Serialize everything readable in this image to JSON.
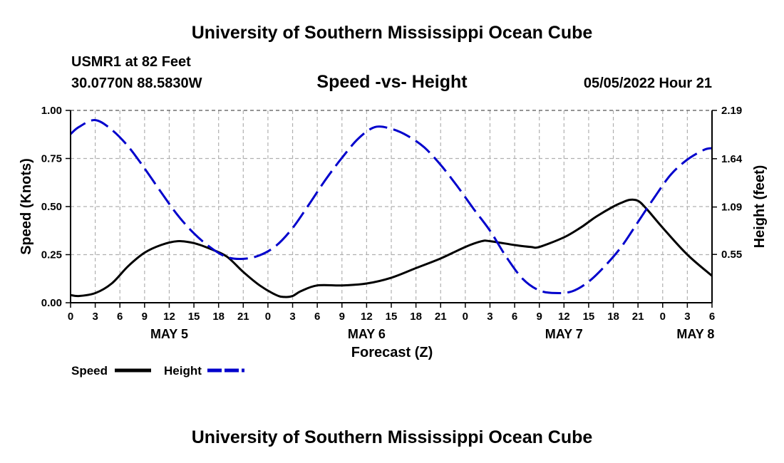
{
  "header": {
    "title_top": "University of Southern Mississippi Ocean Cube",
    "title_bottom": "University of Southern Mississippi Ocean Cube",
    "station": "USMR1 at 82 Feet",
    "coords": "30.0770N  88.5830W",
    "subtitle": "Speed -vs- Height",
    "timestamp": "05/05/2022 Hour 21"
  },
  "chart_data": {
    "type": "line",
    "title": "Speed -vs- Height",
    "xlabel": "Forecast (Z)",
    "ylabel": "Speed (Knots)",
    "y2label": "Height (feet)",
    "xlim": [
      0,
      78
    ],
    "ylim": [
      0,
      1
    ],
    "y2lim": [
      0,
      2.19
    ],
    "x_tick_values": [
      0,
      3,
      6,
      9,
      12,
      15,
      18,
      21,
      24,
      27,
      30,
      33,
      36,
      39,
      42,
      45,
      48,
      51,
      54,
      57,
      60,
      63,
      66,
      69,
      72,
      75,
      78
    ],
    "x_tick_labels": [
      "0",
      "3",
      "6",
      "9",
      "12",
      "15",
      "18",
      "21",
      "0",
      "3",
      "6",
      "9",
      "12",
      "15",
      "18",
      "21",
      "0",
      "3",
      "6",
      "9",
      "12",
      "15",
      "18",
      "21",
      "0",
      "3",
      "6"
    ],
    "y_ticks": [
      0,
      0.25,
      0.5,
      0.75,
      1.0
    ],
    "y_tick_labels": [
      "0.00",
      "0.25",
      "0.50",
      "0.75",
      "1.00"
    ],
    "y2_ticks": [
      0.55,
      1.09,
      1.64,
      2.19
    ],
    "y2_tick_labels": [
      "0.55",
      "1.09",
      "1.64",
      "2.19"
    ],
    "day_labels": [
      {
        "x": 12,
        "label": "MAY 5"
      },
      {
        "x": 36,
        "label": "MAY 6"
      },
      {
        "x": 60,
        "label": "MAY 7"
      },
      {
        "x": 76,
        "label": "MAY 8"
      }
    ],
    "grid": true,
    "series": [
      {
        "name": "Speed",
        "axis": "left",
        "color": "#000000",
        "style": "solid",
        "x": [
          0,
          1,
          3,
          5,
          7,
          9,
          11,
          13,
          15,
          17,
          19,
          21,
          23,
          25,
          26,
          27,
          28,
          30,
          33,
          36,
          39,
          42,
          45,
          48,
          50,
          51,
          54,
          56,
          57,
          60,
          62,
          63,
          64,
          66,
          67,
          68,
          69,
          70,
          72,
          75,
          78
        ],
        "y": [
          0.04,
          0.035,
          0.05,
          0.1,
          0.19,
          0.26,
          0.3,
          0.32,
          0.31,
          0.28,
          0.24,
          0.16,
          0.09,
          0.04,
          0.03,
          0.035,
          0.06,
          0.09,
          0.09,
          0.1,
          0.13,
          0.18,
          0.23,
          0.29,
          0.32,
          0.32,
          0.3,
          0.29,
          0.29,
          0.34,
          0.39,
          0.42,
          0.45,
          0.5,
          0.52,
          0.535,
          0.53,
          0.49,
          0.39,
          0.25,
          0.14
        ]
      },
      {
        "name": "Height",
        "axis": "right",
        "color": "#0000cc",
        "style": "dashed",
        "x": [
          0,
          1,
          3,
          5,
          7,
          9,
          11,
          13,
          15,
          17,
          19,
          21,
          23,
          25,
          27,
          29,
          31,
          33,
          35,
          37,
          39,
          41,
          43,
          45,
          47,
          49,
          51,
          53,
          55,
          57,
          59,
          61,
          63,
          65,
          67,
          69,
          71,
          73,
          75,
          77,
          78
        ],
        "y": [
          1.92,
          2.0,
          2.08,
          1.97,
          1.78,
          1.53,
          1.26,
          1.0,
          0.79,
          0.63,
          0.52,
          0.5,
          0.54,
          0.65,
          0.85,
          1.12,
          1.4,
          1.65,
          1.87,
          2.0,
          1.98,
          1.9,
          1.77,
          1.57,
          1.33,
          1.07,
          0.82,
          0.52,
          0.27,
          0.14,
          0.11,
          0.13,
          0.24,
          0.42,
          0.64,
          0.92,
          1.2,
          1.46,
          1.63,
          1.74,
          1.76
        ]
      }
    ],
    "legend": [
      {
        "label": "Speed",
        "color": "#000000",
        "style": "solid"
      },
      {
        "label": "Height",
        "color": "#0000cc",
        "style": "dashed"
      }
    ],
    "legend_position": "bottom-left"
  }
}
